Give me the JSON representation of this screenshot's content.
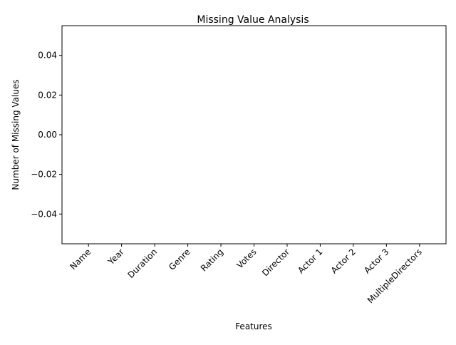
{
  "chart_data": {
    "type": "bar",
    "title": "Missing Value Analysis",
    "xlabel": "Features",
    "ylabel": "Number of Missing Values",
    "categories": [
      "Name",
      "Year",
      "Duration",
      "Genre",
      "Rating",
      "Votes",
      "Director",
      "Actor 1",
      "Actor 2",
      "Actor 3",
      "MultipleDirectors"
    ],
    "values": [
      0,
      0,
      0,
      0,
      0,
      0,
      0,
      0,
      0,
      0,
      0
    ],
    "ylim": [
      -0.055,
      0.055
    ],
    "yticks": [
      0.04,
      0.02,
      0.0,
      -0.02,
      -0.04
    ],
    "ytick_labels": [
      "0.04",
      "0.02",
      "0.00",
      "−0.02",
      "−0.04"
    ],
    "grid": false,
    "bar_color": "#1f77b4"
  }
}
